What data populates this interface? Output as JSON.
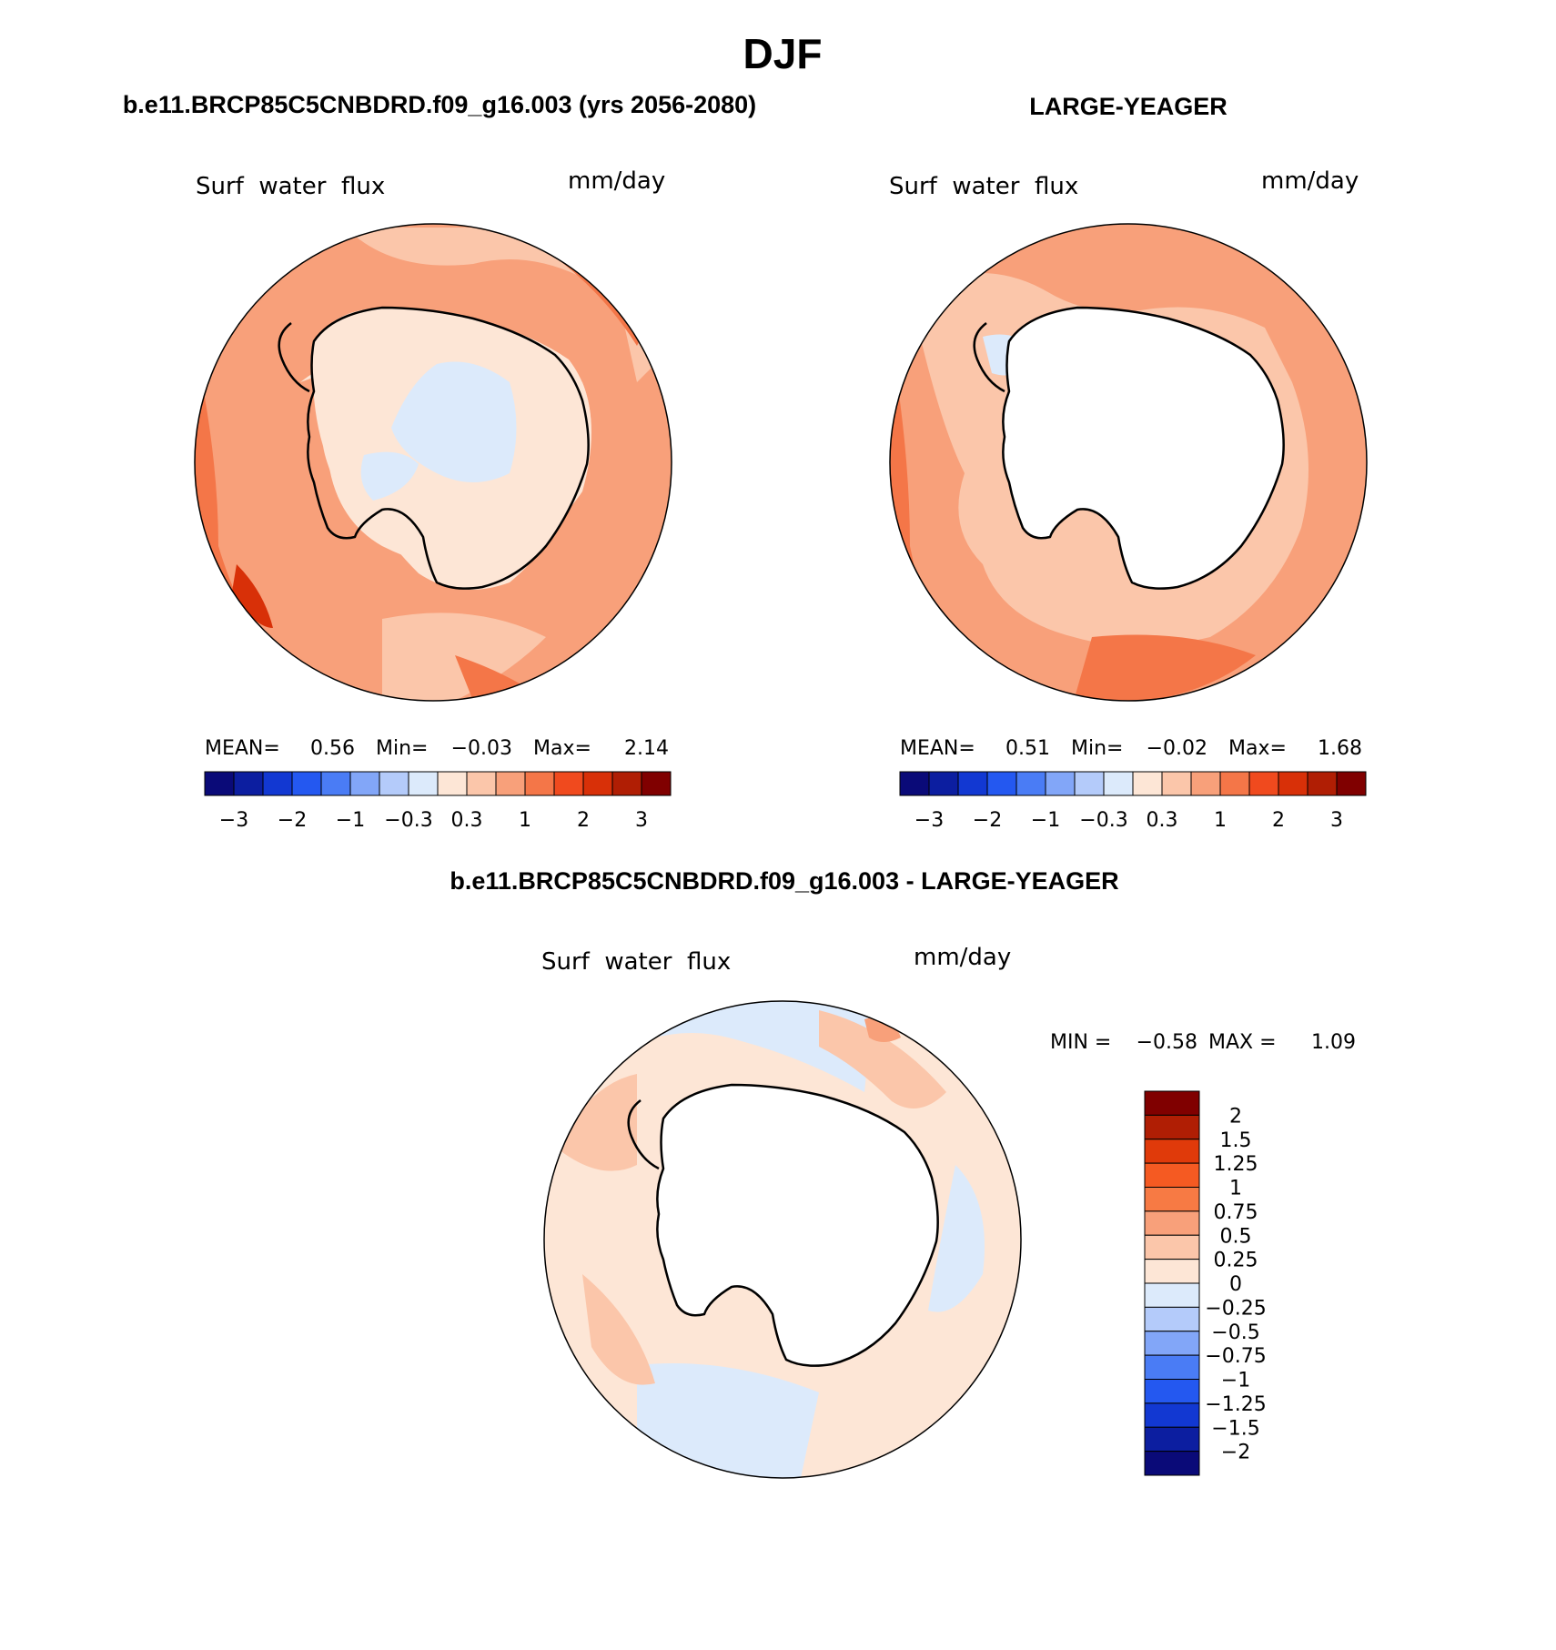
{
  "figure": {
    "season_title": "DJF"
  },
  "panels": [
    {
      "case_title": "b.e11.BRCP85C5CNBDRD.f09_g16.003 (yrs 2056-2080)",
      "var_label": "Surf  water  flux",
      "units": "mm/day",
      "stats": {
        "mean_label": "MEAN=",
        "mean": "0.56",
        "min_label": "Min=",
        "min": "−0.03",
        "max_label": "Max=",
        "max": "2.14"
      }
    },
    {
      "case_title": "LARGE-YEAGER",
      "var_label": "Surf  water  flux",
      "units": "mm/day",
      "stats": {
        "mean_label": "MEAN=",
        "mean": "0.51",
        "min_label": "Min=",
        "min": "−0.02",
        "max_label": "Max=",
        "max": "1.68"
      }
    }
  ],
  "diff_panel": {
    "case_title": "b.e11.BRCP85C5CNBDRD.f09_g16.003 - LARGE-YEAGER",
    "var_label": "Surf  water  flux",
    "units": "mm/day",
    "stats": {
      "min_label": "MIN =",
      "min": "−0.58",
      "max_label": "MAX =",
      "max": "1.09"
    }
  },
  "top_colorbar": {
    "colors": [
      "#0a0a78",
      "#0c1ea0",
      "#1238d2",
      "#2458f0",
      "#4a7cf5",
      "#82a6f8",
      "#b4cbfa",
      "#dceafb",
      "#fde6d6",
      "#fbc6aa",
      "#f8a07a",
      "#f47648",
      "#f04a1e",
      "#d83008",
      "#b01e04",
      "#800000"
    ],
    "tick_labels": [
      "−3",
      "−2",
      "−1",
      "−0.3",
      "0.3",
      "1",
      "2",
      "3"
    ]
  },
  "diff_colorbar": {
    "colors": [
      "#800000",
      "#b01e04",
      "#e03a0a",
      "#f55a22",
      "#f77a44",
      "#f8a07a",
      "#fbc6aa",
      "#fde6d6",
      "#dceafb",
      "#b4cbfa",
      "#82a6f8",
      "#4a7cf5",
      "#2458f0",
      "#1238d2",
      "#0c1ea0",
      "#0a0a78"
    ],
    "tick_labels": [
      "2",
      "1.5",
      "1.25",
      "1",
      "0.75",
      "0.5",
      "0.25",
      "0",
      "−0.25",
      "−0.5",
      "−0.75",
      "−1",
      "−1.25",
      "−1.5",
      "−2"
    ]
  }
}
